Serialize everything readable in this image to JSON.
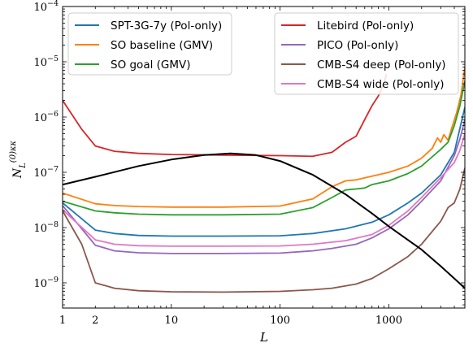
{
  "chart_data": {
    "type": "line",
    "xlabel": "L",
    "ylabel": "N_L^{(0)κκ}",
    "xscale": "log",
    "yscale": "log",
    "xlim": [
      1,
      5000
    ],
    "ylim": [
      3.5e-10,
      0.0001
    ],
    "x_ticks": [
      {
        "value": 1,
        "label": "1"
      },
      {
        "value": 2,
        "label": "2"
      },
      {
        "value": 10,
        "label": "10"
      },
      {
        "value": 100,
        "label": "100"
      },
      {
        "value": 1000,
        "label": "1000"
      }
    ],
    "y_ticks": [
      {
        "value": 1e-09,
        "base": "10",
        "exp": "−9"
      },
      {
        "value": 1e-08,
        "base": "10",
        "exp": "−8"
      },
      {
        "value": 1e-07,
        "base": "10",
        "exp": "−7"
      },
      {
        "value": 1e-06,
        "base": "10",
        "exp": "−6"
      },
      {
        "value": 1e-05,
        "base": "10",
        "exp": "−5"
      },
      {
        "value": 0.0001,
        "base": "10",
        "exp": "−4"
      }
    ],
    "legend_left": [
      "SPT-3G-7y (Pol-only)",
      "SO baseline (GMV)",
      "SO goal (GMV)"
    ],
    "legend_right": [
      "Litebird (Pol-only)",
      "PICO (Pol-only)",
      "CMB-S4 deep (Pol-only)",
      "CMB-S4 wide (Pol-only)"
    ],
    "legend_placement": [
      "top-left",
      "top-right"
    ],
    "series": [
      {
        "name": "SPT-3G-7y (Pol-only)",
        "color": "#1f77b4",
        "points": [
          [
            1,
            2.8e-08
          ],
          [
            2,
            9e-09
          ],
          [
            3,
            7.8e-09
          ],
          [
            5,
            7.2e-09
          ],
          [
            10,
            7e-09
          ],
          [
            30,
            7e-09
          ],
          [
            100,
            7.1e-09
          ],
          [
            200,
            7.8e-09
          ],
          [
            400,
            9.5e-09
          ],
          [
            700,
            1.25e-08
          ],
          [
            1000,
            1.7e-08
          ],
          [
            1500,
            2.8e-08
          ],
          [
            2000,
            4.2e-08
          ],
          [
            3000,
            9e-08
          ],
          [
            4000,
            2.3e-07
          ],
          [
            5000,
            1.5e-06
          ]
        ]
      },
      {
        "name": "SO baseline (GMV)",
        "color": "#ff7f0e",
        "points": [
          [
            1,
            4.2e-08
          ],
          [
            2,
            2.7e-08
          ],
          [
            3,
            2.5e-08
          ],
          [
            5,
            2.4e-08
          ],
          [
            10,
            2.35e-08
          ],
          [
            30,
            2.35e-08
          ],
          [
            100,
            2.45e-08
          ],
          [
            200,
            3.3e-08
          ],
          [
            300,
            5.5e-08
          ],
          [
            400,
            7e-08
          ],
          [
            500,
            7.3e-08
          ],
          [
            700,
            8.5e-08
          ],
          [
            1000,
            1e-07
          ],
          [
            1500,
            1.3e-07
          ],
          [
            2000,
            1.8e-07
          ],
          [
            2500,
            2.7e-07
          ],
          [
            2800,
            4.2e-07
          ],
          [
            3000,
            3.5e-07
          ],
          [
            3200,
            4.8e-07
          ],
          [
            3500,
            3.8e-07
          ],
          [
            3800,
            6.5e-07
          ],
          [
            4200,
            1.2e-06
          ],
          [
            4600,
            2.5e-06
          ],
          [
            5000,
            8e-06
          ]
        ]
      },
      {
        "name": "SO goal (GMV)",
        "color": "#2ca02c",
        "points": [
          [
            1,
            3e-08
          ],
          [
            2,
            2e-08
          ],
          [
            3,
            1.85e-08
          ],
          [
            5,
            1.75e-08
          ],
          [
            10,
            1.7e-08
          ],
          [
            30,
            1.7e-08
          ],
          [
            100,
            1.75e-08
          ],
          [
            200,
            2.3e-08
          ],
          [
            300,
            3.5e-08
          ],
          [
            400,
            4.8e-08
          ],
          [
            500,
            5e-08
          ],
          [
            600,
            5.2e-08
          ],
          [
            700,
            6e-08
          ],
          [
            1000,
            7e-08
          ],
          [
            1500,
            9.5e-08
          ],
          [
            2000,
            1.3e-07
          ],
          [
            2500,
            1.9e-07
          ],
          [
            3000,
            2.6e-07
          ],
          [
            3500,
            3.5e-07
          ],
          [
            4000,
            7e-07
          ],
          [
            4500,
            1.6e-06
          ],
          [
            5000,
            4.5e-06
          ]
        ]
      },
      {
        "name": "Litebird (Pol-only)",
        "color": "#d62728",
        "points": [
          [
            1,
            2e-06
          ],
          [
            1.5,
            6e-07
          ],
          [
            2,
            3e-07
          ],
          [
            3,
            2.4e-07
          ],
          [
            5,
            2.2e-07
          ],
          [
            10,
            2.1e-07
          ],
          [
            30,
            2.05e-07
          ],
          [
            100,
            2e-07
          ],
          [
            200,
            1.95e-07
          ],
          [
            300,
            2.3e-07
          ],
          [
            400,
            3.5e-07
          ],
          [
            500,
            4.5e-07
          ],
          [
            600,
            9e-07
          ],
          [
            700,
            1.6e-06
          ],
          [
            800,
            2.4e-06
          ],
          [
            900,
            4e-06
          ],
          [
            950,
            6e-06
          ]
        ]
      },
      {
        "name": "PICO (Pol-only)",
        "color": "#9467bd",
        "points": [
          [
            1,
            2.5e-08
          ],
          [
            2,
            4.8e-09
          ],
          [
            3,
            3.8e-09
          ],
          [
            5,
            3.5e-09
          ],
          [
            10,
            3.4e-09
          ],
          [
            30,
            3.4e-09
          ],
          [
            100,
            3.45e-09
          ],
          [
            200,
            3.8e-09
          ],
          [
            300,
            4.2e-09
          ],
          [
            500,
            5e-09
          ],
          [
            700,
            6.5e-09
          ],
          [
            1000,
            9.5e-09
          ],
          [
            1500,
            1.7e-08
          ],
          [
            2000,
            3e-08
          ],
          [
            3000,
            7e-08
          ],
          [
            4000,
            2e-07
          ],
          [
            4500,
            4e-07
          ],
          [
            5000,
            9e-07
          ]
        ]
      },
      {
        "name": "CMB-S4 deep (Pol-only)",
        "color": "#8c564b",
        "points": [
          [
            1,
            2e-08
          ],
          [
            1.5,
            5e-09
          ],
          [
            2,
            1e-09
          ],
          [
            3,
            8e-10
          ],
          [
            5,
            7.2e-10
          ],
          [
            10,
            6.9e-10
          ],
          [
            30,
            6.8e-10
          ],
          [
            100,
            7e-10
          ],
          [
            200,
            7.5e-10
          ],
          [
            300,
            8e-10
          ],
          [
            500,
            9.5e-10
          ],
          [
            700,
            1.2e-09
          ],
          [
            1000,
            1.8e-09
          ],
          [
            1500,
            3e-09
          ],
          [
            2000,
            5e-09
          ],
          [
            3000,
            1.3e-08
          ],
          [
            3500,
            2.3e-08
          ],
          [
            4000,
            2.8e-08
          ],
          [
            4500,
            5e-08
          ],
          [
            5000,
            1.2e-07
          ]
        ]
      },
      {
        "name": "CMB-S4 wide (Pol-only)",
        "color": "#e377c2",
        "points": [
          [
            1,
            2.1e-08
          ],
          [
            2,
            6e-09
          ],
          [
            3,
            5e-09
          ],
          [
            5,
            4.7e-09
          ],
          [
            10,
            4.6e-09
          ],
          [
            30,
            4.6e-09
          ],
          [
            100,
            4.65e-09
          ],
          [
            200,
            5e-09
          ],
          [
            400,
            5.8e-09
          ],
          [
            700,
            7.5e-09
          ],
          [
            1000,
            1.1e-08
          ],
          [
            1500,
            2e-08
          ],
          [
            2000,
            3.5e-08
          ],
          [
            3000,
            8e-08
          ],
          [
            4000,
            1.5e-07
          ],
          [
            4500,
            2.5e-07
          ],
          [
            5000,
            5e-07
          ]
        ]
      },
      {
        "name": "",
        "color": "#000000",
        "points": [
          [
            1,
            6e-08
          ],
          [
            2,
            8.3e-08
          ],
          [
            5,
            1.3e-07
          ],
          [
            10,
            1.7e-07
          ],
          [
            20,
            2.05e-07
          ],
          [
            35,
            2.2e-07
          ],
          [
            60,
            2.05e-07
          ],
          [
            100,
            1.6e-07
          ],
          [
            200,
            9e-08
          ],
          [
            400,
            4e-08
          ],
          [
            700,
            1.8e-08
          ],
          [
            1000,
            1.05e-08
          ],
          [
            2000,
            4e-09
          ],
          [
            3000,
            2e-09
          ],
          [
            4000,
            1.2e-09
          ],
          [
            5000,
            8e-10
          ]
        ]
      }
    ]
  }
}
